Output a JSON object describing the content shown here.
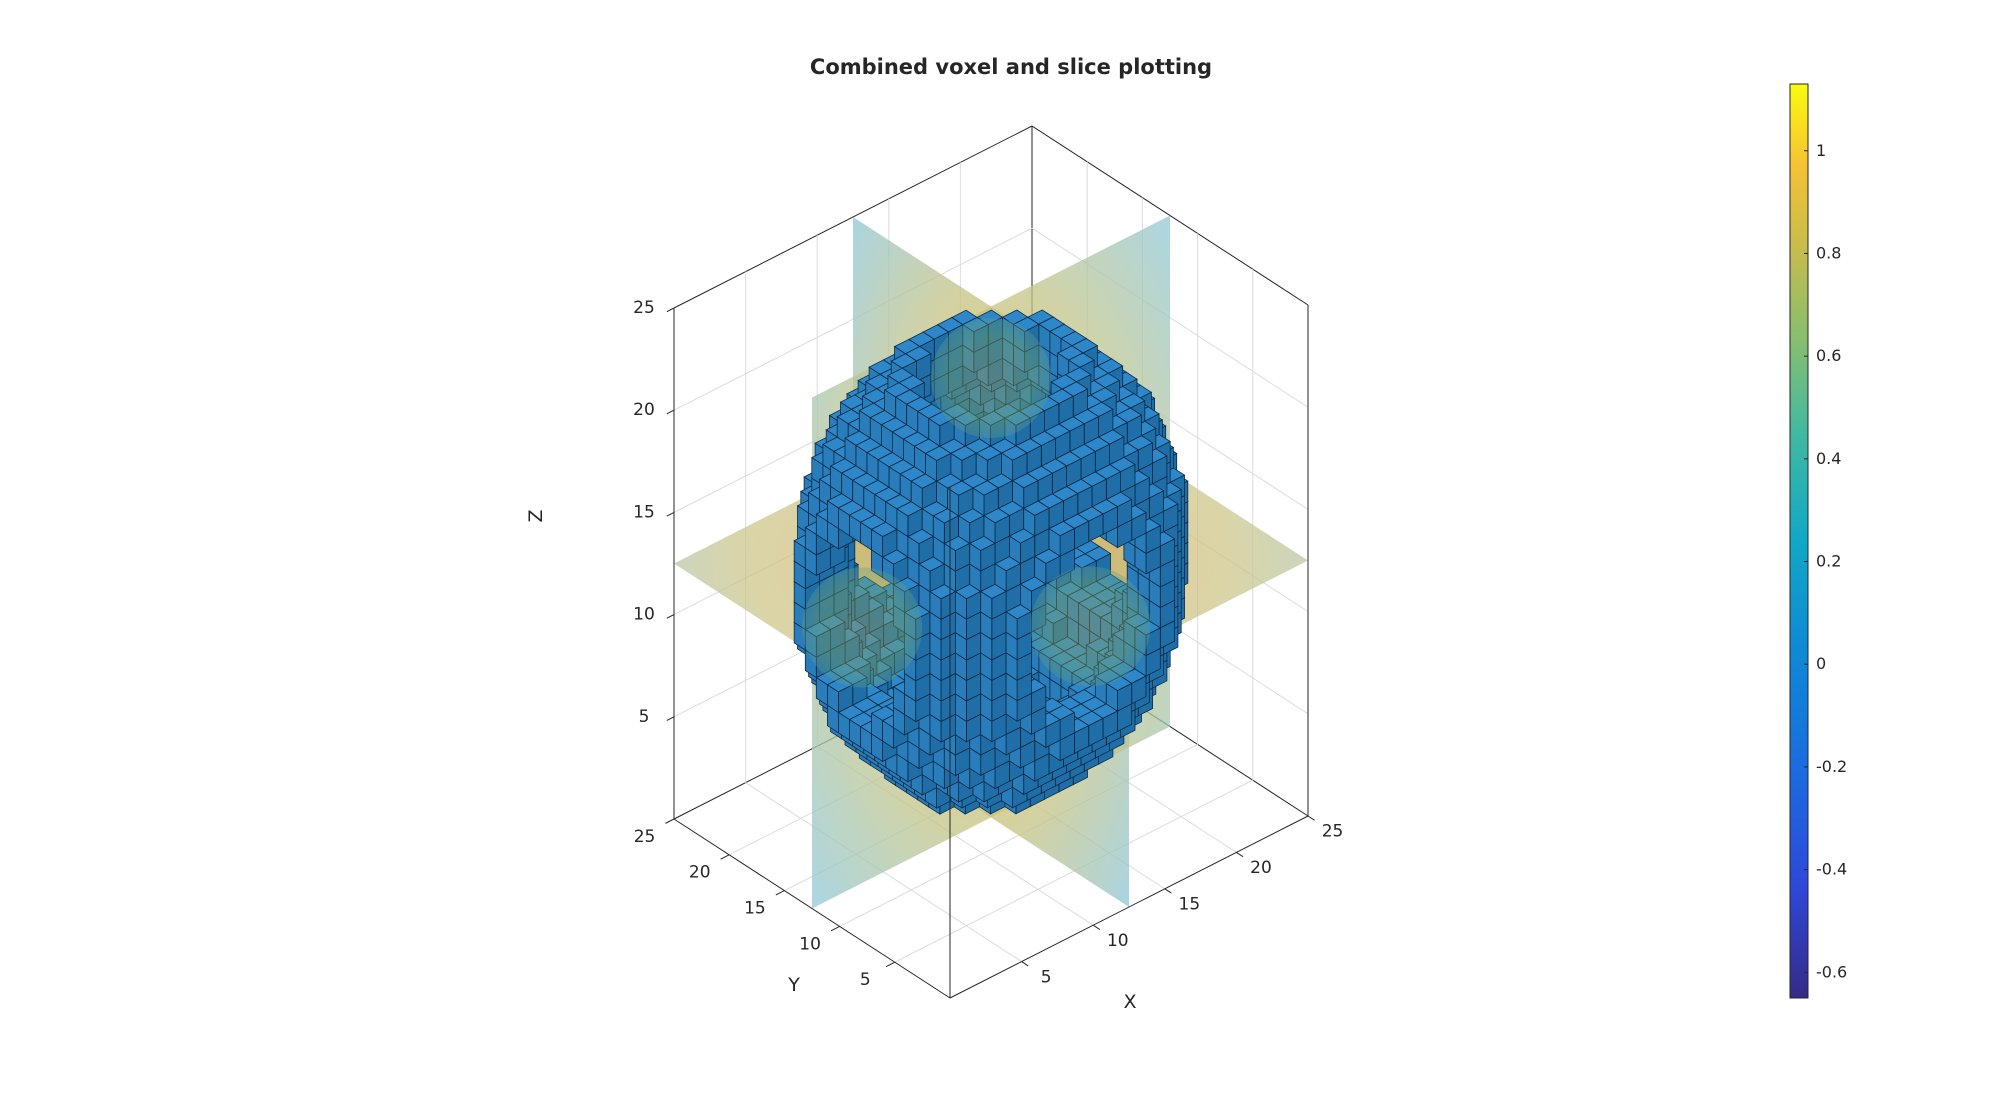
{
  "chart_data": {
    "type": "voxel-slice-3d",
    "title": "Combined voxel and slice plotting",
    "xlabel": "X",
    "ylabel": "Y",
    "zlabel": "Z",
    "xlim": [
      0,
      25
    ],
    "ylim": [
      0,
      25
    ],
    "zlim": [
      0,
      25
    ],
    "x_ticks": [
      "5",
      "10",
      "15",
      "20",
      "25"
    ],
    "y_ticks": [
      "5",
      "10",
      "15",
      "20",
      "25"
    ],
    "z_ticks": [
      "5",
      "10",
      "15",
      "20",
      "25"
    ],
    "grid": true,
    "slices": {
      "x": 12.5,
      "y": 12.5,
      "z": 12.5
    },
    "voxel_color": "#1f77b4",
    "colormap": "parula",
    "colorbar": {
      "location": "right",
      "limits": [
        -0.65,
        1.13
      ],
      "ticks": [
        "-0.6",
        "-0.4",
        "-0.2",
        "0",
        "0.2",
        "0.4",
        "0.6",
        "0.8",
        "1"
      ]
    }
  }
}
